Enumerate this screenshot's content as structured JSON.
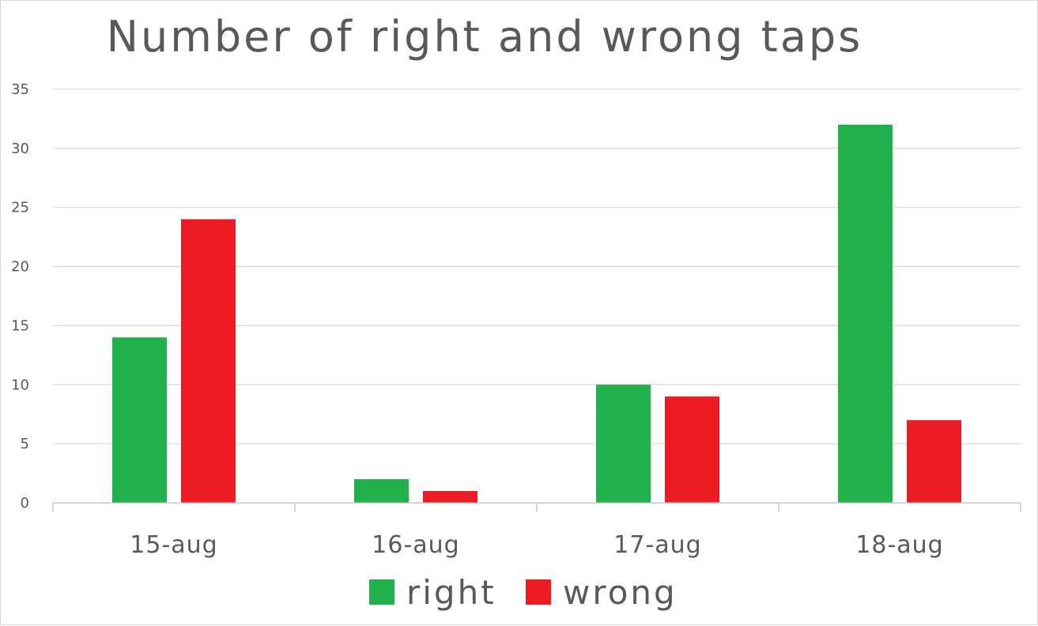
{
  "chart_data": {
    "type": "bar",
    "title": "Number of right and wrong taps",
    "categories": [
      "15-aug",
      "16-aug",
      "17-aug",
      "18-aug"
    ],
    "series": [
      {
        "name": "right",
        "values": [
          14,
          2,
          10,
          32
        ],
        "color": "#22b14c"
      },
      {
        "name": "wrong",
        "values": [
          24,
          1,
          9,
          7
        ],
        "color": "#ed1c24"
      }
    ],
    "ylim": [
      0,
      35
    ],
    "yticks": [
      0,
      5,
      10,
      15,
      20,
      25,
      30,
      35
    ],
    "grid": true,
    "legend_position": "bottom",
    "text_color": "#595959",
    "grid_color": "#d9d9d9",
    "axis_color": "#bfbfbf"
  }
}
